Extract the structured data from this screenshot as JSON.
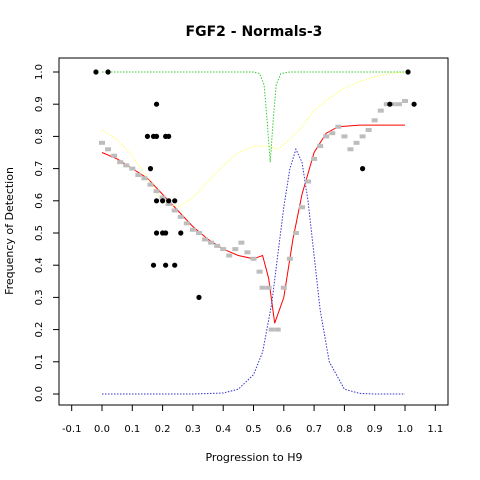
{
  "chart_data": {
    "type": "scatter",
    "title": "FGF2 - Normals-3",
    "xlabel": "Progression to H9",
    "ylabel": "Frequency of Detection",
    "xlim": [
      -0.1,
      1.1
    ],
    "ylim": [
      0.0,
      1.0
    ],
    "x_ticks": [
      "-0.1",
      "0.0",
      "0.1",
      "0.2",
      "0.3",
      "0.4",
      "0.5",
      "0.6",
      "0.7",
      "0.8",
      "0.9",
      "1.0",
      "1.1"
    ],
    "y_ticks": [
      "0.0",
      "0.1",
      "0.2",
      "0.3",
      "0.4",
      "0.5",
      "0.6",
      "0.7",
      "0.8",
      "0.9",
      "1.0"
    ],
    "grid": false,
    "legend": "none",
    "colors": {
      "observed": "#000000",
      "moving_average": "#bdbdbd",
      "fit": "#ff0000",
      "upper_curve": "#ffff66",
      "dip_curve": "#33cc33",
      "density": "#3333cc"
    },
    "series": [
      {
        "kind": "points",
        "color_key": "observed",
        "points": [
          [
            -0.02,
            1.0
          ],
          [
            0.02,
            1.0
          ],
          [
            1.01,
            1.0
          ],
          [
            1.03,
            0.9
          ],
          [
            0.95,
            0.9
          ],
          [
            0.18,
            0.9
          ],
          [
            0.15,
            0.8
          ],
          [
            0.17,
            0.8
          ],
          [
            0.18,
            0.8
          ],
          [
            0.21,
            0.8
          ],
          [
            0.22,
            0.8
          ],
          [
            0.16,
            0.7
          ],
          [
            0.18,
            0.6
          ],
          [
            0.2,
            0.6
          ],
          [
            0.22,
            0.6
          ],
          [
            0.24,
            0.6
          ],
          [
            0.18,
            0.5
          ],
          [
            0.2,
            0.5
          ],
          [
            0.21,
            0.5
          ],
          [
            0.26,
            0.5
          ],
          [
            0.17,
            0.4
          ],
          [
            0.21,
            0.4
          ],
          [
            0.24,
            0.4
          ],
          [
            0.32,
            0.3
          ],
          [
            0.86,
            0.7
          ]
        ]
      },
      {
        "kind": "points",
        "color_key": "moving_average",
        "points": [
          [
            0.0,
            0.78
          ],
          [
            0.02,
            0.76
          ],
          [
            0.04,
            0.74
          ],
          [
            0.06,
            0.72
          ],
          [
            0.08,
            0.71
          ],
          [
            0.1,
            0.7
          ],
          [
            0.12,
            0.68
          ],
          [
            0.14,
            0.67
          ],
          [
            0.16,
            0.65
          ],
          [
            0.18,
            0.63
          ],
          [
            0.2,
            0.61
          ],
          [
            0.22,
            0.59
          ],
          [
            0.24,
            0.57
          ],
          [
            0.26,
            0.55
          ],
          [
            0.28,
            0.53
          ],
          [
            0.3,
            0.51
          ],
          [
            0.32,
            0.5
          ],
          [
            0.34,
            0.48
          ],
          [
            0.36,
            0.47
          ],
          [
            0.38,
            0.46
          ],
          [
            0.4,
            0.45
          ],
          [
            0.42,
            0.43
          ],
          [
            0.44,
            0.45
          ],
          [
            0.46,
            0.47
          ],
          [
            0.48,
            0.44
          ],
          [
            0.5,
            0.42
          ],
          [
            0.52,
            0.38
          ],
          [
            0.53,
            0.33
          ],
          [
            0.55,
            0.33
          ],
          [
            0.56,
            0.2
          ],
          [
            0.58,
            0.2
          ],
          [
            0.6,
            0.33
          ],
          [
            0.62,
            0.42
          ],
          [
            0.64,
            0.5
          ],
          [
            0.66,
            0.58
          ],
          [
            0.68,
            0.66
          ],
          [
            0.7,
            0.73
          ],
          [
            0.72,
            0.77
          ],
          [
            0.74,
            0.8
          ],
          [
            0.76,
            0.81
          ],
          [
            0.78,
            0.83
          ],
          [
            0.8,
            0.8
          ],
          [
            0.82,
            0.76
          ],
          [
            0.84,
            0.78
          ],
          [
            0.86,
            0.8
          ],
          [
            0.88,
            0.82
          ],
          [
            0.9,
            0.85
          ],
          [
            0.92,
            0.88
          ],
          [
            0.94,
            0.9
          ],
          [
            0.96,
            0.9
          ],
          [
            0.98,
            0.9
          ],
          [
            1.0,
            0.91
          ]
        ]
      },
      {
        "kind": "line",
        "color_key": "fit",
        "dash": "solid",
        "points": [
          [
            0.0,
            0.75
          ],
          [
            0.05,
            0.73
          ],
          [
            0.1,
            0.7
          ],
          [
            0.15,
            0.67
          ],
          [
            0.2,
            0.62
          ],
          [
            0.25,
            0.57
          ],
          [
            0.3,
            0.52
          ],
          [
            0.35,
            0.48
          ],
          [
            0.4,
            0.45
          ],
          [
            0.45,
            0.43
          ],
          [
            0.5,
            0.42
          ],
          [
            0.53,
            0.43
          ],
          [
            0.55,
            0.36
          ],
          [
            0.57,
            0.22
          ],
          [
            0.6,
            0.3
          ],
          [
            0.63,
            0.48
          ],
          [
            0.66,
            0.62
          ],
          [
            0.7,
            0.75
          ],
          [
            0.74,
            0.81
          ],
          [
            0.78,
            0.83
          ],
          [
            0.85,
            0.835
          ],
          [
            0.95,
            0.835
          ],
          [
            1.0,
            0.835
          ]
        ]
      },
      {
        "kind": "line",
        "color_key": "upper_curve",
        "dash": "dotted",
        "points": [
          [
            0.0,
            0.82
          ],
          [
            0.05,
            0.79
          ],
          [
            0.1,
            0.74
          ],
          [
            0.15,
            0.67
          ],
          [
            0.2,
            0.6
          ],
          [
            0.25,
            0.58
          ],
          [
            0.3,
            0.61
          ],
          [
            0.35,
            0.66
          ],
          [
            0.4,
            0.71
          ],
          [
            0.45,
            0.75
          ],
          [
            0.5,
            0.77
          ],
          [
            0.55,
            0.77
          ],
          [
            0.58,
            0.76
          ],
          [
            0.62,
            0.79
          ],
          [
            0.66,
            0.83
          ],
          [
            0.7,
            0.88
          ],
          [
            0.75,
            0.92
          ],
          [
            0.8,
            0.95
          ],
          [
            0.85,
            0.97
          ],
          [
            0.9,
            0.985
          ],
          [
            0.95,
            0.995
          ],
          [
            1.0,
            1.0
          ]
        ]
      },
      {
        "kind": "line",
        "color_key": "dip_curve",
        "dash": "dotted",
        "points": [
          [
            0.0,
            1.0
          ],
          [
            0.5,
            1.0
          ],
          [
            0.52,
            0.995
          ],
          [
            0.535,
            0.96
          ],
          [
            0.545,
            0.85
          ],
          [
            0.555,
            0.72
          ],
          [
            0.565,
            0.85
          ],
          [
            0.575,
            0.96
          ],
          [
            0.59,
            0.995
          ],
          [
            0.62,
            1.0
          ],
          [
            1.0,
            1.0
          ]
        ]
      },
      {
        "kind": "line",
        "color_key": "density",
        "dash": "dotted",
        "points": [
          [
            0.0,
            0.0
          ],
          [
            0.3,
            0.0
          ],
          [
            0.4,
            0.003
          ],
          [
            0.45,
            0.015
          ],
          [
            0.5,
            0.06
          ],
          [
            0.53,
            0.13
          ],
          [
            0.56,
            0.28
          ],
          [
            0.58,
            0.43
          ],
          [
            0.6,
            0.58
          ],
          [
            0.62,
            0.7
          ],
          [
            0.64,
            0.76
          ],
          [
            0.66,
            0.72
          ],
          [
            0.68,
            0.6
          ],
          [
            0.7,
            0.43
          ],
          [
            0.72,
            0.26
          ],
          [
            0.75,
            0.1
          ],
          [
            0.8,
            0.015
          ],
          [
            0.85,
            0.002
          ],
          [
            0.9,
            0.0
          ],
          [
            1.0,
            0.0
          ]
        ]
      }
    ]
  }
}
